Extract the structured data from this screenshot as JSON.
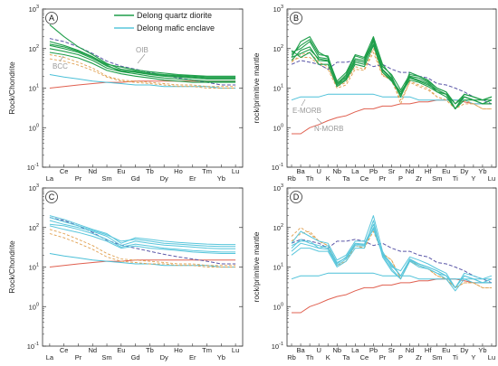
{
  "legend": {
    "items": [
      {
        "label": "Delong quartz diorite",
        "color": "#1f9e4a"
      },
      {
        "label": "Delong mafic enclave",
        "color": "#59c6dc"
      }
    ]
  },
  "colors": {
    "quartz_diorite": "#1f9e4a",
    "mafic_enclave": "#59c6dc",
    "oib": "#5b57a8",
    "bcc": "#e0a050",
    "nmorb": "#e06050",
    "emorb": "#4cc0d8"
  },
  "chart_data": [
    {
      "type": "line",
      "panel": "A",
      "ylabel": "Rock/Chondrite",
      "yscale": "log",
      "ylim": [
        0.1,
        1000
      ],
      "y_ticks": [
        "10-1",
        "100",
        "101",
        "102",
        "103"
      ],
      "categories": [
        "La",
        "Ce",
        "Pr",
        "Nd",
        "Sm",
        "Eu",
        "Gd",
        "Tb",
        "Dy",
        "Ho",
        "Er",
        "Tm",
        "Yb",
        "Lu"
      ],
      "annotations": [
        "OIB",
        "BCC"
      ],
      "series": [
        {
          "group": "quartz_diorite",
          "values": [
            400,
            200,
            110,
            70,
            42,
            30,
            27,
            24,
            22,
            21,
            20,
            19,
            19,
            19
          ]
        },
        {
          "group": "quartz_diorite",
          "values": [
            150,
            120,
            90,
            62,
            40,
            34,
            29,
            26,
            24,
            22,
            21,
            20,
            20,
            20
          ]
        },
        {
          "group": "quartz_diorite",
          "values": [
            120,
            100,
            80,
            56,
            36,
            28,
            25,
            22,
            20,
            19,
            18,
            17,
            17,
            17
          ]
        },
        {
          "group": "quartz_diorite",
          "values": [
            100,
            85,
            70,
            50,
            32,
            26,
            23,
            20,
            18,
            17,
            16,
            15,
            15,
            15
          ]
        },
        {
          "group": "quartz_diorite",
          "values": [
            80,
            70,
            58,
            42,
            28,
            23,
            20,
            18,
            16,
            15,
            14,
            14,
            14,
            14
          ]
        },
        {
          "group": "quartz_diorite",
          "values": [
            130,
            110,
            85,
            60,
            38,
            26,
            26,
            23,
            21,
            20,
            19,
            18,
            18,
            18
          ]
        },
        {
          "group": "oib",
          "values": [
            180,
            150,
            110,
            75,
            48,
            36,
            30,
            25,
            21,
            18,
            16,
            14,
            12,
            12
          ]
        },
        {
          "group": "bcc",
          "values": [
            70,
            60,
            45,
            32,
            20,
            16,
            15,
            14,
            13,
            12,
            12,
            11,
            11,
            11
          ]
        },
        {
          "group": "bcc",
          "values": [
            55,
            48,
            38,
            28,
            19,
            15,
            14,
            13,
            12,
            11,
            11,
            10,
            10,
            10
          ]
        },
        {
          "group": "nmorb",
          "values": [
            10,
            11,
            12,
            13,
            14,
            14,
            15,
            15,
            15,
            15,
            15,
            15,
            15,
            15
          ]
        },
        {
          "group": "emorb",
          "values": [
            22,
            19,
            17,
            15,
            14,
            13,
            12,
            12,
            11,
            11,
            11,
            11,
            10,
            10
          ]
        }
      ]
    },
    {
      "type": "line",
      "panel": "B",
      "ylabel": "rock/primitive mantle",
      "yscale": "log",
      "ylim": [
        0.1,
        1000
      ],
      "y_ticks": [
        "10-1",
        "100",
        "101",
        "102",
        "103"
      ],
      "categories": [
        "Rb",
        "Ba",
        "Th",
        "U",
        "K",
        "Nb",
        "Ta",
        "La",
        "Ce",
        "Pb",
        "Pr",
        "Sr",
        "P",
        "Nd",
        "Zr",
        "Hf",
        "Sm",
        "Eu",
        "Ti",
        "Dy",
        "Y",
        "Yb",
        "Lu"
      ],
      "annotations": [
        "E-MORB",
        "N-MORB"
      ],
      "series": [
        {
          "group": "quartz_diorite",
          "values": [
            60,
            150,
            200,
            80,
            60,
            15,
            25,
            70,
            60,
            200,
            40,
            20,
            6,
            25,
            20,
            15,
            10,
            8,
            3,
            7,
            6,
            5,
            6
          ]
        },
        {
          "group": "quartz_diorite",
          "values": [
            80,
            100,
            150,
            60,
            55,
            12,
            20,
            55,
            50,
            150,
            30,
            18,
            7,
            20,
            18,
            14,
            9,
            7,
            3,
            6,
            5,
            4,
            5
          ]
        },
        {
          "group": "quartz_diorite",
          "values": [
            50,
            90,
            110,
            50,
            48,
            14,
            18,
            45,
            40,
            180,
            25,
            16,
            8,
            18,
            15,
            12,
            9,
            7,
            4,
            6,
            5,
            5,
            5
          ]
        },
        {
          "group": "quartz_diorite",
          "values": [
            70,
            120,
            170,
            70,
            65,
            13,
            22,
            65,
            55,
            160,
            35,
            22,
            9,
            22,
            20,
            16,
            10,
            8,
            4,
            7,
            6,
            5,
            6
          ]
        },
        {
          "group": "quartz_diorite",
          "values": [
            90,
            60,
            80,
            40,
            40,
            11,
            16,
            40,
            35,
            120,
            25,
            15,
            7,
            16,
            14,
            11,
            8,
            6,
            3,
            5,
            5,
            4,
            4
          ]
        },
        {
          "group": "quartz_diorite",
          "values": [
            60,
            75,
            95,
            55,
            50,
            12,
            17,
            50,
            45,
            130,
            28,
            17,
            6,
            19,
            16,
            13,
            8,
            7,
            3,
            6,
            5,
            4,
            5
          ]
        },
        {
          "group": "oib",
          "values": [
            40,
            50,
            45,
            40,
            30,
            45,
            45,
            50,
            45,
            35,
            40,
            30,
            25,
            25,
            20,
            18,
            13,
            12,
            10,
            8,
            6,
            5,
            4
          ]
        },
        {
          "group": "bcc",
          "values": [
            50,
            60,
            60,
            40,
            30,
            10,
            12,
            30,
            28,
            80,
            20,
            18,
            4,
            15,
            12,
            10,
            6,
            5,
            3,
            5,
            4,
            3,
            3
          ]
        },
        {
          "group": "bcc",
          "values": [
            45,
            70,
            80,
            45,
            35,
            11,
            14,
            35,
            30,
            100,
            22,
            15,
            5,
            14,
            11,
            9,
            6,
            5,
            3,
            4,
            4,
            3,
            3
          ]
        },
        {
          "group": "emorb",
          "values": [
            5,
            6,
            6,
            6,
            7,
            7,
            7,
            7,
            7,
            7,
            6,
            6,
            6,
            6,
            5,
            5,
            5,
            5,
            5,
            5,
            4,
            4,
            4
          ]
        },
        {
          "group": "nmorb",
          "values": [
            0.7,
            0.7,
            1,
            1.2,
            1.5,
            1.8,
            2,
            2.5,
            3,
            3,
            3.5,
            3.5,
            4,
            4,
            4.5,
            4.5,
            5,
            5,
            5,
            4.5,
            4,
            4,
            4
          ]
        }
      ]
    },
    {
      "type": "line",
      "panel": "C",
      "ylabel": "Rock/Chondrite",
      "yscale": "log",
      "ylim": [
        0.1,
        1000
      ],
      "y_ticks": [
        "10-1",
        "100",
        "101",
        "102",
        "103"
      ],
      "categories": [
        "La",
        "Ce",
        "Pr",
        "Nd",
        "Sm",
        "Eu",
        "Gd",
        "Tb",
        "Dy",
        "Ho",
        "Er",
        "Tm",
        "Yb",
        "Lu"
      ],
      "series": [
        {
          "group": "mafic_enclave",
          "values": [
            200,
            160,
            120,
            90,
            70,
            40,
            55,
            50,
            45,
            42,
            40,
            38,
            37,
            37
          ]
        },
        {
          "group": "mafic_enclave",
          "values": [
            180,
            140,
            110,
            85,
            65,
            45,
            50,
            45,
            40,
            38,
            36,
            34,
            33,
            33
          ]
        },
        {
          "group": "mafic_enclave",
          "values": [
            150,
            120,
            100,
            80,
            60,
            35,
            45,
            40,
            36,
            34,
            32,
            30,
            29,
            29
          ]
        },
        {
          "group": "mafic_enclave",
          "values": [
            120,
            110,
            90,
            70,
            50,
            32,
            38,
            34,
            30,
            28,
            26,
            25,
            24,
            24
          ]
        },
        {
          "group": "mafic_enclave",
          "values": [
            110,
            90,
            75,
            60,
            45,
            30,
            34,
            30,
            28,
            26,
            24,
            23,
            22,
            22
          ]
        },
        {
          "group": "oib",
          "values": [
            180,
            150,
            110,
            75,
            48,
            36,
            30,
            25,
            21,
            18,
            16,
            14,
            12,
            12
          ]
        },
        {
          "group": "bcc",
          "values": [
            90,
            70,
            50,
            35,
            22,
            16,
            15,
            14,
            13,
            12,
            12,
            11,
            11,
            11
          ]
        },
        {
          "group": "bcc",
          "values": [
            70,
            55,
            40,
            28,
            18,
            14,
            13,
            12,
            12,
            11,
            11,
            10,
            10,
            10
          ]
        },
        {
          "group": "nmorb",
          "values": [
            10,
            11,
            12,
            13,
            14,
            14,
            15,
            15,
            15,
            15,
            15,
            15,
            15,
            15
          ]
        },
        {
          "group": "emorb",
          "values": [
            22,
            19,
            17,
            15,
            14,
            13,
            12,
            12,
            11,
            11,
            11,
            11,
            10,
            10
          ]
        }
      ]
    },
    {
      "type": "line",
      "panel": "D",
      "ylabel": "rock/primitive mantle",
      "yscale": "log",
      "ylim": [
        0.1,
        1000
      ],
      "y_ticks": [
        "10-1",
        "100",
        "101",
        "102",
        "103"
      ],
      "categories": [
        "Rb",
        "Ba",
        "Th",
        "U",
        "K",
        "Nb",
        "Ta",
        "La",
        "Ce",
        "Pb",
        "Pr",
        "Sr",
        "P",
        "Nd",
        "Zr",
        "Hf",
        "Sm",
        "Eu",
        "Ti",
        "Dy",
        "Y",
        "Yb",
        "Lu"
      ],
      "series": [
        {
          "group": "mafic_enclave",
          "values": [
            40,
            80,
            60,
            45,
            40,
            15,
            20,
            45,
            45,
            200,
            25,
            10,
            8,
            18,
            15,
            12,
            9,
            7,
            3,
            7,
            6,
            5,
            6
          ]
        },
        {
          "group": "mafic_enclave",
          "values": [
            30,
            50,
            40,
            35,
            30,
            12,
            18,
            40,
            38,
            120,
            22,
            12,
            6,
            16,
            12,
            10,
            8,
            6,
            3,
            6,
            5,
            4,
            5
          ]
        },
        {
          "group": "mafic_enclave",
          "values": [
            20,
            30,
            30,
            25,
            25,
            10,
            14,
            30,
            30,
            150,
            18,
            8,
            5,
            14,
            10,
            9,
            7,
            5,
            2.5,
            5,
            5,
            4,
            4
          ]
        },
        {
          "group": "mafic_enclave",
          "values": [
            25,
            40,
            35,
            30,
            28,
            11,
            16,
            35,
            34,
            100,
            20,
            9,
            5,
            15,
            11,
            9,
            7,
            6,
            3,
            6,
            5,
            4,
            5
          ]
        },
        {
          "group": "mafic_enclave",
          "values": [
            35,
            45,
            45,
            30,
            35,
            13,
            17,
            38,
            36,
            90,
            21,
            11,
            6,
            15,
            12,
            10,
            8,
            6,
            3,
            6,
            5,
            5,
            5
          ]
        },
        {
          "group": "oib",
          "values": [
            40,
            50,
            45,
            40,
            30,
            45,
            45,
            50,
            45,
            35,
            40,
            30,
            25,
            25,
            20,
            18,
            13,
            12,
            10,
            8,
            6,
            5,
            4
          ]
        },
        {
          "group": "bcc",
          "values": [
            60,
            100,
            70,
            45,
            35,
            11,
            14,
            35,
            30,
            100,
            22,
            15,
            5,
            14,
            11,
            9,
            6,
            5,
            3,
            4,
            4,
            3,
            3
          ]
        },
        {
          "group": "bcc",
          "values": [
            45,
            70,
            80,
            45,
            35,
            11,
            14,
            35,
            30,
            80,
            22,
            15,
            5,
            14,
            11,
            9,
            6,
            5,
            3,
            4,
            4,
            3,
            3
          ]
        },
        {
          "group": "emorb",
          "values": [
            5,
            6,
            6,
            6,
            7,
            7,
            7,
            7,
            7,
            7,
            6,
            6,
            6,
            6,
            5,
            5,
            5,
            5,
            5,
            5,
            4,
            4,
            4
          ]
        },
        {
          "group": "nmorb",
          "values": [
            0.7,
            0.7,
            1,
            1.2,
            1.5,
            1.8,
            2,
            2.5,
            3,
            3,
            3.5,
            3.5,
            4,
            4,
            4.5,
            4.5,
            5,
            5,
            5,
            4.5,
            4,
            4,
            4
          ]
        }
      ]
    }
  ]
}
